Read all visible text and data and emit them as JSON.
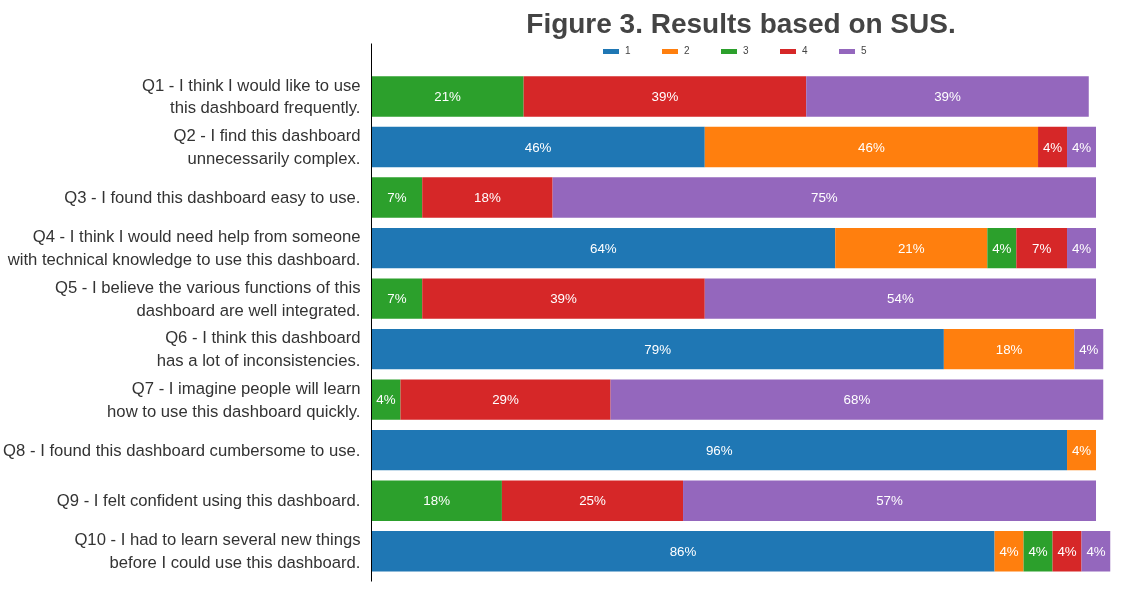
{
  "chart_data": {
    "type": "bar",
    "orientation": "horizontal",
    "stacked": true,
    "title": "Figure 3. Results based on SUS.",
    "categories": [
      "Q1 - I think I would like to use\nthis dashboard frequently.",
      "Q2 - I find this dashboard\nunnecessarily complex.",
      "Q3 - I found this dashboard easy to use.",
      "Q4 - I think I would need help from someone\nwith technical knowledge to use this dashboard.",
      "Q5 - I believe the various functions of this\ndashboard are well integrated.",
      "Q6 - I think this dashboard\nhas a lot of inconsistencies.",
      "Q7 - I imagine people will learn\nhow to use this dashboard quickly.",
      "Q8 - I found this dashboard cumbersome to use.",
      "Q9 - I felt confident using this dashboard.",
      "Q10 - I had to learn several new things\nbefore I could use this dashboard."
    ],
    "series": [
      {
        "name": "1",
        "color": "#1f77b4",
        "values": [
          null,
          46,
          null,
          64,
          null,
          79,
          null,
          96,
          null,
          86
        ],
        "value_labels": [
          null,
          "46%",
          null,
          "64%",
          null,
          "79%",
          null,
          "96%",
          null,
          "86%"
        ]
      },
      {
        "name": "2",
        "color": "#ff7f0e",
        "values": [
          null,
          46,
          null,
          21,
          null,
          18,
          null,
          4,
          null,
          4
        ],
        "value_labels": [
          null,
          "46%",
          null,
          "21%",
          null,
          "18%",
          null,
          "4%",
          null,
          "4%"
        ]
      },
      {
        "name": "3",
        "color": "#2ca02c",
        "values": [
          21,
          null,
          7,
          4,
          7,
          null,
          4,
          null,
          18,
          4
        ],
        "value_labels": [
          "21%",
          null,
          "7%",
          "4%",
          "7%",
          null,
          "4%",
          null,
          "18%",
          "4%"
        ]
      },
      {
        "name": "4",
        "color": "#d62728",
        "values": [
          39,
          4,
          18,
          7,
          39,
          null,
          29,
          null,
          25,
          4
        ],
        "value_labels": [
          "39%",
          "4%",
          "18%",
          "7%",
          "39%",
          null,
          "29%",
          null,
          "25%",
          "4%"
        ]
      },
      {
        "name": "5",
        "color": "#9467bd",
        "values": [
          39,
          4,
          75,
          4,
          54,
          4,
          68,
          null,
          57,
          4
        ],
        "value_labels": [
          "39%",
          "4%",
          "75%",
          "4%",
          "54%",
          "4%",
          "68%",
          null,
          "57%",
          "4%"
        ]
      }
    ],
    "xlim": [
      0,
      102
    ],
    "tick_labels": "y",
    "grid": false,
    "legend": "top"
  }
}
